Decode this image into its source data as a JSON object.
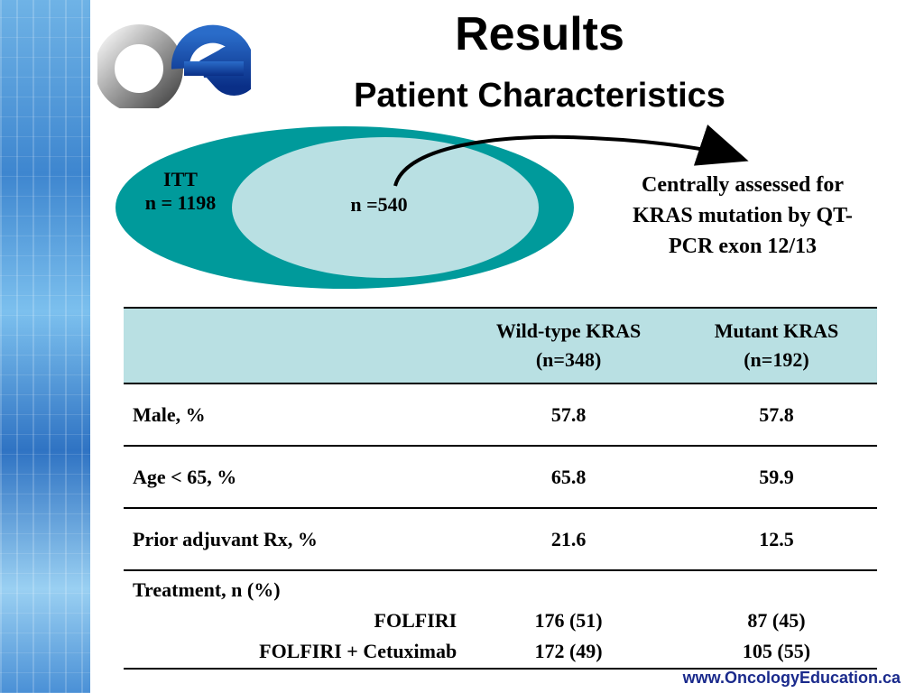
{
  "slide": {
    "title": "Results",
    "subtitle": "Patient Characteristics"
  },
  "venn": {
    "outer_label_line1": "ITT",
    "outer_label_line2": "n = 1198",
    "inner_label": "n =540",
    "annotation_line1": "Centrally assessed for",
    "annotation_line2": "KRAS mutation by QT-",
    "annotation_line3": "PCR exon 12/13",
    "colors": {
      "outer": "#009a9b",
      "inner": "#b9e0e3"
    }
  },
  "table": {
    "headers": {
      "wt_line1": "Wild-type KRAS",
      "wt_line2": "(n=348)",
      "mut_line1": "Mutant KRAS",
      "mut_line2": "(n=192)"
    },
    "rows": [
      {
        "label": "Male, %",
        "wt": "57.8",
        "mut": "57.8"
      },
      {
        "label": "Age < 65, %",
        "wt": "65.8",
        "mut": "59.9"
      },
      {
        "label": "Prior adjuvant Rx, %",
        "wt": "21.6",
        "mut": "12.5"
      }
    ],
    "treatment": {
      "label": "Treatment, n (%)",
      "sub": [
        {
          "label": "FOLFIRI",
          "wt": "176 (51)",
          "mut": "87 (45)"
        },
        {
          "label": "FOLFIRI + Cetuximab",
          "wt": "172 (49)",
          "mut": "105 (55)"
        }
      ]
    },
    "header_color": "#b9e0e3"
  },
  "footer": {
    "url": "www.OncologyEducation.ca",
    "color": "#1a2a8c"
  },
  "icons": {
    "logo": "oe-logo-icon"
  }
}
